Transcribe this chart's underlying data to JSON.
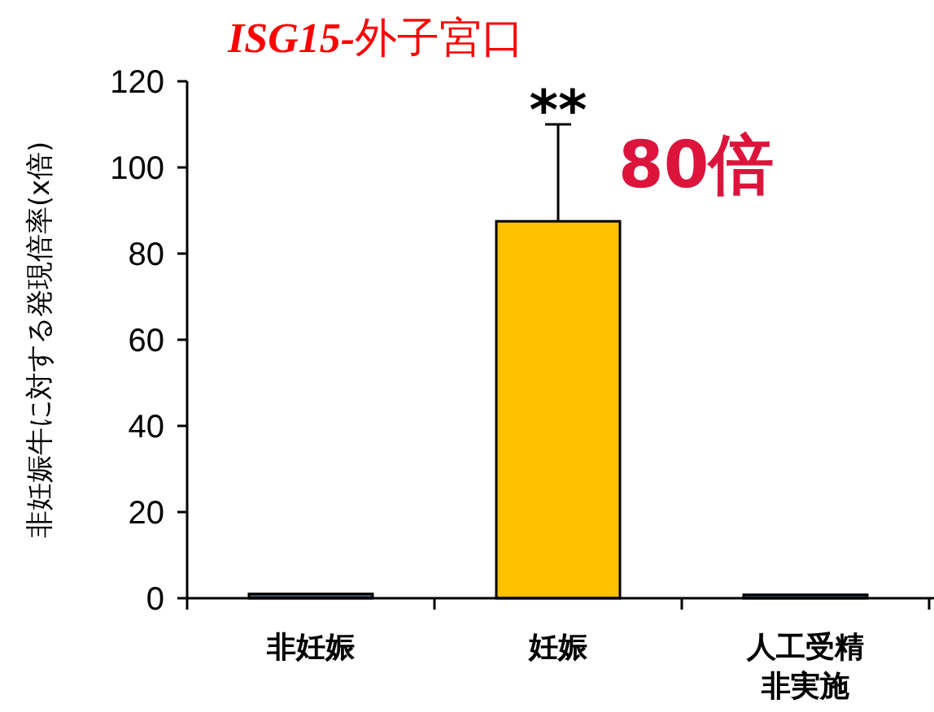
{
  "chart_data": {
    "type": "bar",
    "title": "ISG15-外子宮口",
    "ylabel": "非妊娠牛に対する発現倍率(x倍)",
    "categories": [
      "非妊娠",
      "妊娠",
      "人工受精非実施"
    ],
    "values": [
      1,
      87.5,
      0.8
    ],
    "errors": [
      null,
      22.5,
      null
    ],
    "colors": [
      "#44546a",
      "#ffc000",
      "#44546a"
    ],
    "ylim": [
      0,
      120
    ],
    "yticks": [
      0,
      20,
      40,
      60,
      80,
      100,
      120
    ],
    "grid": false,
    "annotations": [
      {
        "text": "**",
        "x": "妊娠",
        "y": 110
      },
      "80倍"
    ]
  }
}
